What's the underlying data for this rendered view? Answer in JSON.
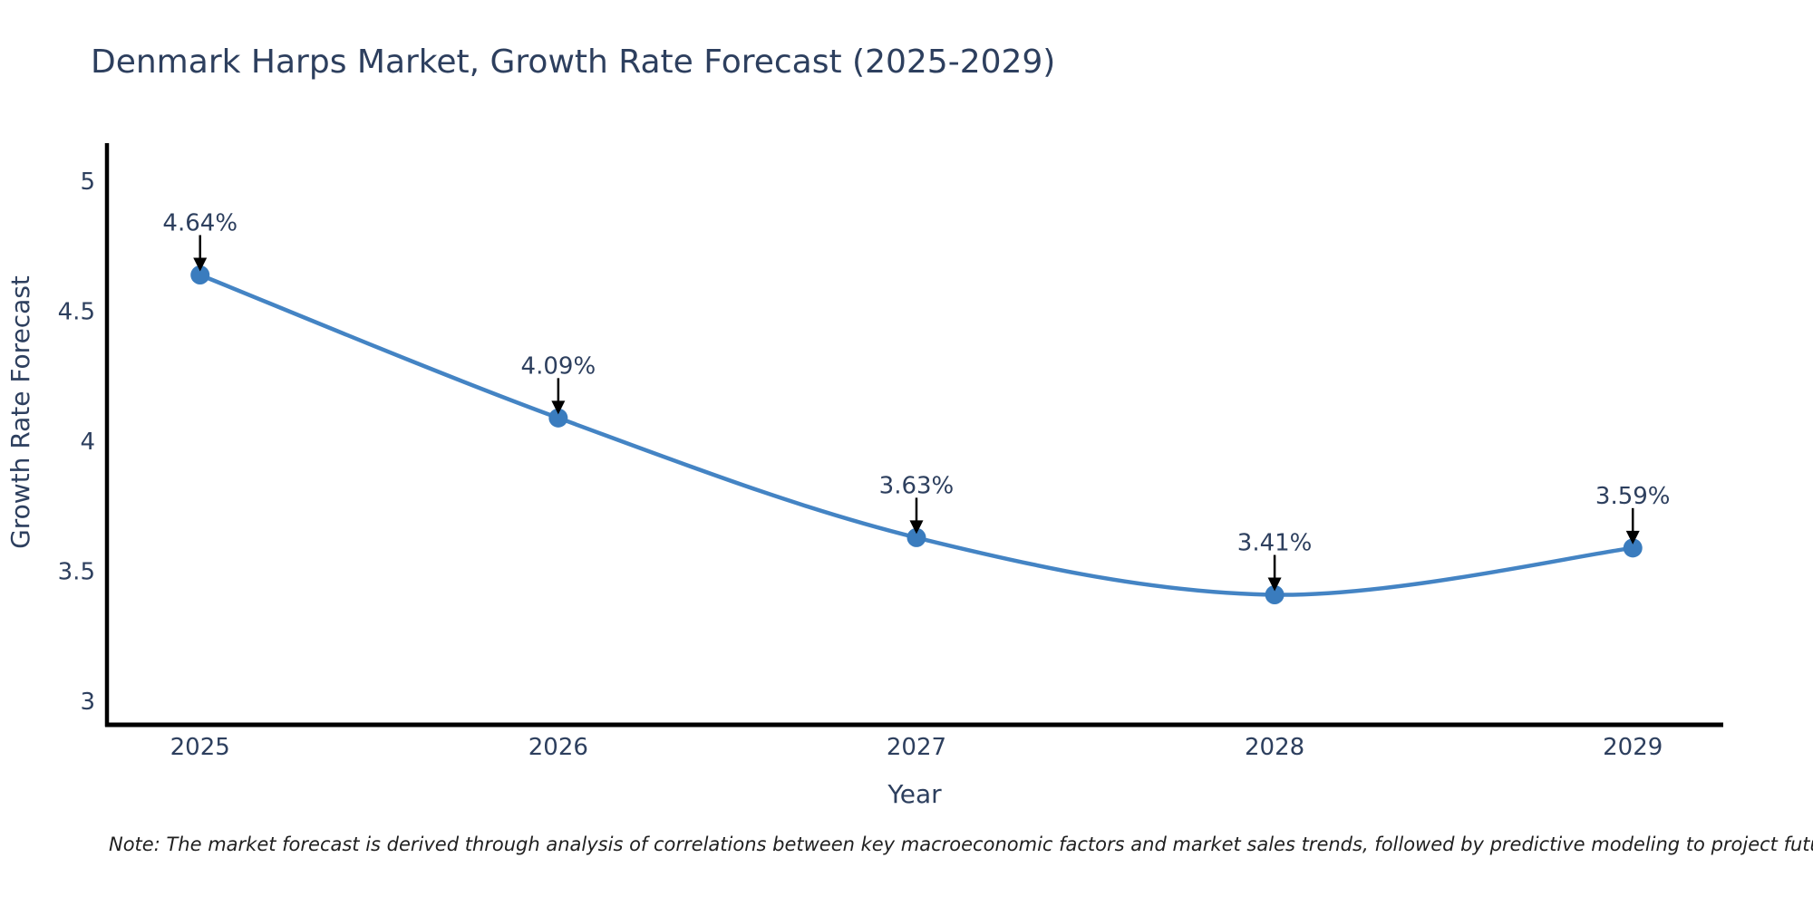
{
  "note": "Note: The market forecast is derived through analysis of correlations between key macroeconomic factors and market sales trends, followed by predictive modeling to project future sales",
  "colors": {
    "title": "#2d3f5e",
    "axis_text": "#2d3f5e",
    "annotation_text": "#2d3f5e",
    "line": "#4484c4",
    "marker": "#3a7cbe",
    "spine": "#000000",
    "arrow": "#000000",
    "note_text": "#1f1f1f",
    "background": "#ffffff"
  },
  "chart_data": {
    "type": "line",
    "title": "Denmark Harps Market, Growth Rate Forecast (2025-2029)",
    "xlabel": "Year",
    "ylabel": "Growth Rate Forecast",
    "x": [
      2025,
      2026,
      2027,
      2028,
      2029
    ],
    "values": [
      4.64,
      4.09,
      3.63,
      3.41,
      3.59
    ],
    "point_labels": [
      "4.64%",
      "4.09%",
      "3.63%",
      "3.41%",
      "3.59%"
    ],
    "x_tick_labels": [
      "2025",
      "2026",
      "2027",
      "2028",
      "2029"
    ],
    "y_ticks": [
      3,
      3.5,
      4,
      4.5,
      5
    ],
    "y_tick_labels": [
      "3",
      "3.5",
      "4",
      "4.5",
      "5"
    ],
    "xlim": [
      2024.74,
      2029.25
    ],
    "ylim": [
      2.91,
      5.14
    ],
    "grid": false,
    "legend": false,
    "line_shape": "spline",
    "annotation_style": "black downward arrows from percentage labels to each data point"
  }
}
